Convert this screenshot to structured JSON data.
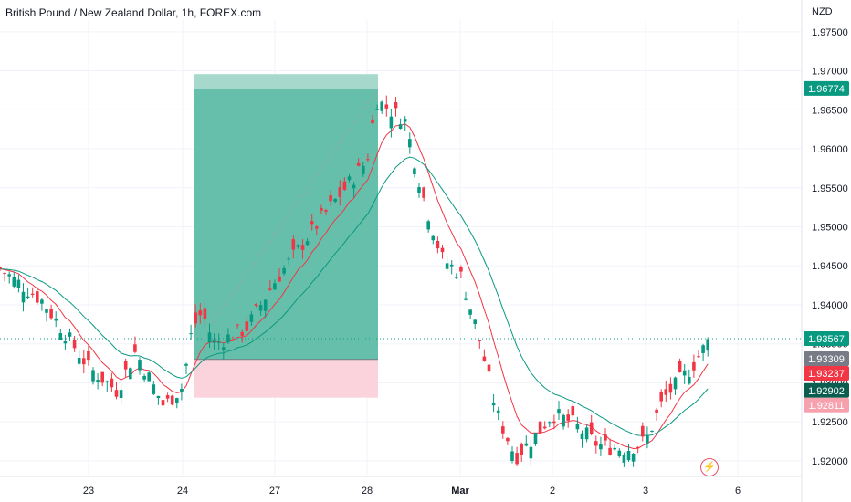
{
  "title": "British Pound / New Zealand Dollar, 1h, FOREX.com",
  "currency": "NZD",
  "colors": {
    "up": "#089981",
    "down": "#f23645",
    "ema_fast": "#f23645",
    "ema_slow": "#089981",
    "profit_zone": "#66bfaa",
    "profit_top": "#a6d9cc",
    "loss_zone": "#fbd3dd",
    "grid": "#f0f3fa",
    "axis_text": "#131722"
  },
  "icons": {
    "alert": "lightning-icon"
  },
  "chart_data": {
    "type": "candlestick",
    "title": "British Pound / New Zealand Dollar, 1h, FOREX.com",
    "ylim": [
      1.918,
      1.9765
    ],
    "y_ticks": [
      "1.97500",
      "1.97000",
      "1.96500",
      "1.96000",
      "1.95500",
      "1.95000",
      "1.94500",
      "1.94000",
      "1.93500",
      "1.93000",
      "1.92500",
      "1.92000"
    ],
    "x_ticks": [
      "23",
      "24",
      "27",
      "28",
      "Mar",
      "2",
      "3",
      "6"
    ],
    "price_badges": [
      {
        "label": "1.96774",
        "value": 1.96774,
        "color": "#089981"
      },
      {
        "label": "1.93567",
        "value": 1.93567,
        "color": "#089981"
      },
      {
        "label": "1.93309",
        "value": 1.93309,
        "color": "#787b86"
      },
      {
        "label": "1.93237",
        "value": 1.93237,
        "color": "#f23645"
      },
      {
        "label": "1.92902",
        "value": 1.92902,
        "color": "#0b5e4f"
      },
      {
        "label": "1.92811",
        "value": 1.92811,
        "color": "#f7a1ae"
      }
    ],
    "position": {
      "type": "long",
      "entry": 1.933,
      "target": 1.9677,
      "stop": 1.9281,
      "start_tick": "24",
      "end_tick": "28"
    },
    "price_path": [
      [
        "22",
        1.945
      ],
      [
        "22.5",
        1.9405
      ],
      [
        "23",
        1.932
      ],
      [
        "23.3",
        1.929
      ],
      [
        "23.5",
        1.934
      ],
      [
        "23.8",
        1.927
      ],
      [
        "24",
        1.9295
      ],
      [
        "24.3",
        1.937
      ],
      [
        "24.6",
        1.939
      ],
      [
        "25",
        1.935
      ],
      [
        "26",
        1.937
      ],
      [
        "27",
        1.943
      ],
      [
        "27.5",
        1.951
      ],
      [
        "27.8",
        1.9555
      ],
      [
        "28",
        1.9585
      ],
      [
        "28.1",
        1.9663
      ],
      [
        "28.3",
        1.9645
      ],
      [
        "28.4",
        1.964
      ],
      [
        "28.6",
        1.954
      ],
      [
        "28.8",
        1.946
      ],
      [
        "Mar",
        1.944
      ],
      [
        "1.2",
        1.936
      ],
      [
        "1.4",
        1.926
      ],
      [
        "1.6",
        1.9205
      ],
      [
        "1.8",
        1.923
      ],
      [
        "2",
        1.926
      ],
      [
        "2.2",
        1.925
      ],
      [
        "2.5",
        1.922
      ],
      [
        "2.8",
        1.9215
      ],
      [
        "3",
        1.9225
      ],
      [
        "3.2",
        1.928
      ],
      [
        "3.5",
        1.932
      ],
      [
        "3.7",
        1.9357
      ]
    ]
  }
}
